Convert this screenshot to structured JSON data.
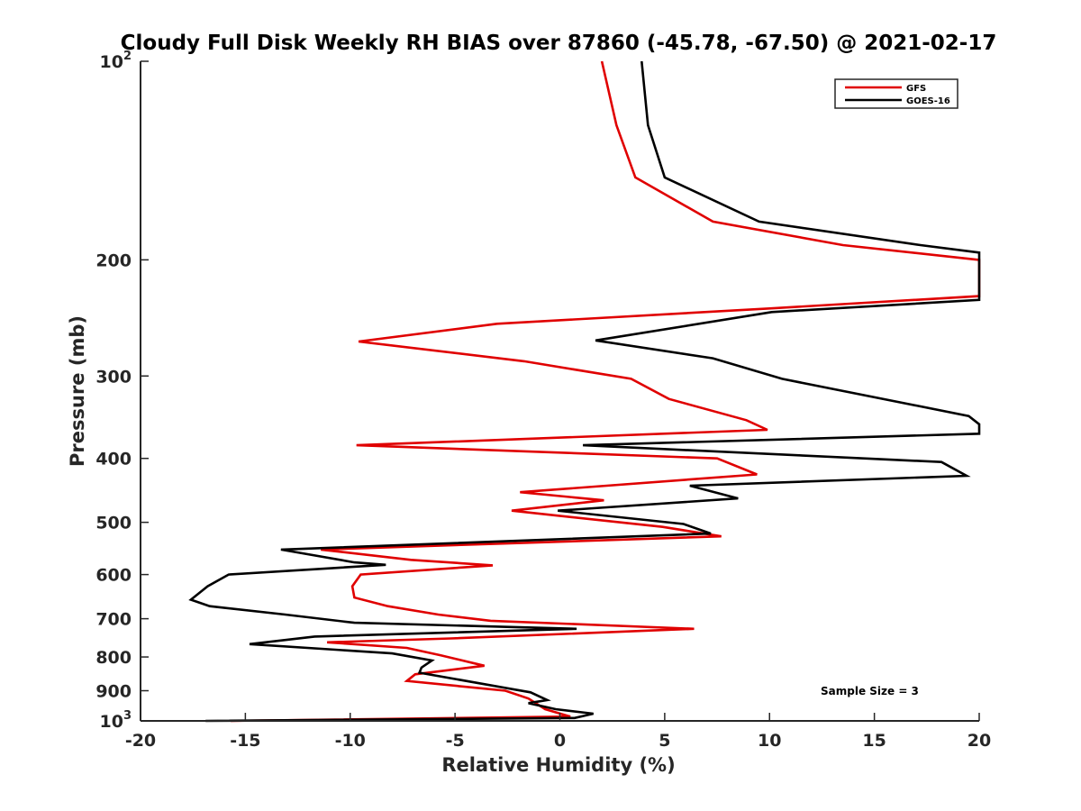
{
  "chart_data": {
    "type": "line",
    "title": "Cloudy Full Disk Weekly RH BIAS over 87860 (-45.78, -67.50) @ 2021-02-17",
    "xlabel": "Relative Humidity (%)",
    "ylabel": "Pressure (mb)",
    "xlim": [
      -20,
      20
    ],
    "ylim": [
      100,
      1000
    ],
    "y_scale": "log",
    "y_reversed": true,
    "x_ticks": [
      "-20",
      "-15",
      "-10",
      "-5",
      "0",
      "5",
      "10",
      "15",
      "20"
    ],
    "y_ticks": [
      {
        "value": 100,
        "base": "10",
        "exp": "2"
      },
      {
        "value": 200,
        "base": "200",
        "exp": ""
      },
      {
        "value": 300,
        "base": "300",
        "exp": ""
      },
      {
        "value": 400,
        "base": "400",
        "exp": ""
      },
      {
        "value": 500,
        "base": "500",
        "exp": ""
      },
      {
        "value": 600,
        "base": "600",
        "exp": ""
      },
      {
        "value": 700,
        "base": "700",
        "exp": ""
      },
      {
        "value": 800,
        "base": "800",
        "exp": ""
      },
      {
        "value": 900,
        "base": "900",
        "exp": ""
      },
      {
        "value": 1000,
        "base": "10",
        "exp": "3"
      }
    ],
    "legend_position": "top-right",
    "annotation": "Sample Size = 3",
    "series": [
      {
        "name": "GFS",
        "color": "#e00000",
        "points": [
          [
            2,
            100
          ],
          [
            2.7,
            125
          ],
          [
            3.6,
            150
          ],
          [
            7.3,
            175
          ],
          [
            13.5,
            190
          ],
          [
            20,
            200
          ],
          [
            20,
            227
          ],
          [
            10,
            237
          ],
          [
            -3,
            250
          ],
          [
            -9.6,
            266
          ],
          [
            -1.7,
            285
          ],
          [
            3.4,
            303
          ],
          [
            5.2,
            325
          ],
          [
            8.9,
            350
          ],
          [
            9.9,
            362
          ],
          [
            -9.7,
            382
          ],
          [
            7.5,
            400
          ],
          [
            9.4,
            423
          ],
          [
            -1.9,
            450
          ],
          [
            2.1,
            463
          ],
          [
            -2.3,
            480
          ],
          [
            4.9,
            508
          ],
          [
            7.7,
            525
          ],
          [
            -11.4,
            550
          ],
          [
            -7.1,
            570
          ],
          [
            -3.2,
            581
          ],
          [
            -9.5,
            600
          ],
          [
            -9.9,
            625
          ],
          [
            -9.8,
            650
          ],
          [
            -8.2,
            670
          ],
          [
            -5.8,
            690
          ],
          [
            -3.3,
            705
          ],
          [
            6.4,
            725
          ],
          [
            -5.2,
            750
          ],
          [
            -11.1,
            760
          ],
          [
            -7.3,
            775
          ],
          [
            -5.7,
            795
          ],
          [
            -3.6,
            825
          ],
          [
            -6.9,
            850
          ],
          [
            -7.3,
            870
          ],
          [
            -2.6,
            900
          ],
          [
            -1.5,
            925
          ],
          [
            -0.7,
            960
          ],
          [
            0.5,
            985
          ],
          [
            -15.7,
            1000
          ]
        ]
      },
      {
        "name": "GOES-16",
        "color": "#000000",
        "points": [
          [
            3.9,
            100
          ],
          [
            4.2,
            125
          ],
          [
            5,
            150
          ],
          [
            9.5,
            175
          ],
          [
            17.2,
            190
          ],
          [
            20,
            195
          ],
          [
            20,
            230
          ],
          [
            10.1,
            240
          ],
          [
            1.7,
            265
          ],
          [
            7.3,
            282
          ],
          [
            10.6,
            303
          ],
          [
            19.5,
            345
          ],
          [
            20,
            355
          ],
          [
            20,
            367
          ],
          [
            1.1,
            382
          ],
          [
            18.2,
            405
          ],
          [
            19.4,
            425
          ],
          [
            6.2,
            440
          ],
          [
            8.5,
            460
          ],
          [
            -0.1,
            480
          ],
          [
            5.9,
            503
          ],
          [
            7.2,
            520
          ],
          [
            -13.3,
            550
          ],
          [
            -9.8,
            575
          ],
          [
            -8.3,
            580
          ],
          [
            -15.8,
            600
          ],
          [
            -16.8,
            625
          ],
          [
            -17.6,
            655
          ],
          [
            -16.7,
            670
          ],
          [
            -13.1,
            690
          ],
          [
            -9.8,
            710
          ],
          [
            0.8,
            725
          ],
          [
            -11.7,
            745
          ],
          [
            -14.8,
            765
          ],
          [
            -8,
            790
          ],
          [
            -6.1,
            810
          ],
          [
            -6.6,
            830
          ],
          [
            -6.7,
            845
          ],
          [
            -1.4,
            905
          ],
          [
            -0.6,
            930
          ],
          [
            -1.5,
            940
          ],
          [
            -0.2,
            960
          ],
          [
            1.6,
            975
          ],
          [
            0.7,
            990
          ],
          [
            -16.9,
            1000
          ]
        ]
      }
    ]
  }
}
